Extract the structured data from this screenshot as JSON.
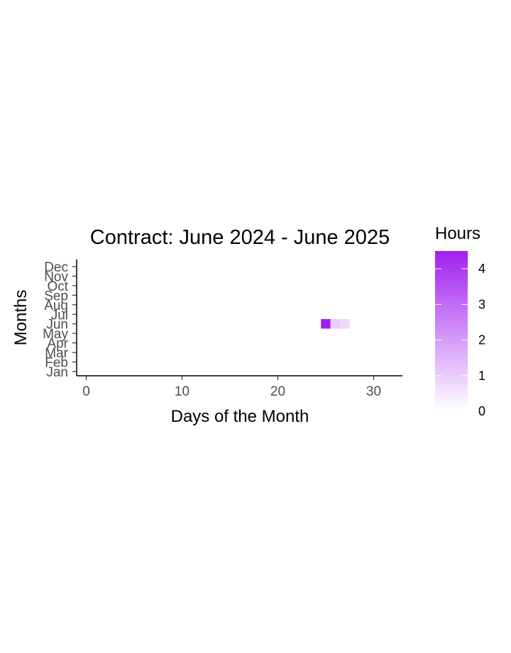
{
  "chart_data": {
    "type": "heatmap",
    "title": "Contract: June 2024 - June 2025",
    "xlabel": "Days of the Month",
    "ylabel": "Months",
    "xlim": [
      -1,
      33
    ],
    "x_ticks": [
      0,
      10,
      20,
      30
    ],
    "y_categories": [
      "Jan",
      "Feb",
      "Mar",
      "Apr",
      "May",
      "Jun",
      "Jul",
      "Aug",
      "Sep",
      "Oct",
      "Nov",
      "Dec"
    ],
    "cells": [
      {
        "day": 25,
        "month": "Jun",
        "hours": 4.5
      },
      {
        "day": 26,
        "month": "Jun",
        "hours": 1.0
      },
      {
        "day": 27,
        "month": "Jun",
        "hours": 0.8
      }
    ],
    "grid": false,
    "legend": {
      "title": "Hours",
      "placement": "right",
      "range": [
        0,
        4.5
      ],
      "ticks": [
        0,
        1,
        2,
        3,
        4
      ],
      "color_low": "#ffffff",
      "color_high": "#a020f0"
    }
  }
}
